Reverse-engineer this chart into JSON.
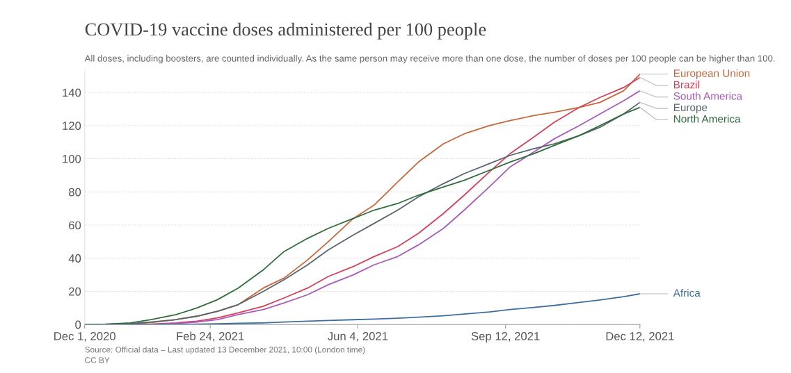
{
  "chart_data": {
    "type": "line",
    "title": "COVID-19 vaccine doses administered per 100 people",
    "subtitle": "All doses, including boosters, are counted individually. As the same person may receive more than one dose, the number of doses per 100 people can be higher than 100.",
    "x": [
      "2020-12-01",
      "2020-12-15",
      "2021-01-01",
      "2021-01-15",
      "2021-02-01",
      "2021-02-15",
      "2021-03-01",
      "2021-03-15",
      "2021-04-01",
      "2021-04-15",
      "2021-05-01",
      "2021-05-15",
      "2021-06-01",
      "2021-06-15",
      "2021-07-01",
      "2021-07-15",
      "2021-08-01",
      "2021-08-15",
      "2021-09-01",
      "2021-09-15",
      "2021-10-01",
      "2021-10-15",
      "2021-11-01",
      "2021-11-15",
      "2021-12-01",
      "2021-12-12"
    ],
    "series": [
      {
        "name": "European Union",
        "color": "#c8673a",
        "values": [
          null,
          null,
          0.3,
          1.2,
          3,
          5,
          8,
          12,
          22,
          28,
          39,
          50,
          64,
          72,
          86,
          98,
          109,
          115,
          120,
          123,
          126,
          128,
          131,
          134,
          141,
          151
        ]
      },
      {
        "name": "Brazil",
        "color": "#d6405a",
        "values": [
          null,
          null,
          0,
          0.2,
          1,
          2,
          4,
          7,
          11,
          16,
          22,
          29,
          35,
          41,
          47,
          55,
          67,
          78,
          92,
          103,
          113,
          122,
          131,
          137,
          143,
          149
        ]
      },
      {
        "name": "South America",
        "color": "#a75bbd",
        "values": [
          null,
          null,
          0,
          0.1,
          0.7,
          1.5,
          3,
          6,
          9,
          13,
          18,
          24,
          30,
          36,
          41,
          48,
          58,
          69,
          83,
          95,
          104,
          112,
          120,
          127,
          135,
          141
        ]
      },
      {
        "name": "Europe",
        "color": "#56666c",
        "values": [
          0,
          0.1,
          0.5,
          1.5,
          3,
          5,
          8,
          12,
          20,
          27,
          36,
          45,
          54,
          61,
          69,
          77,
          85,
          91,
          97,
          102,
          106,
          109,
          114,
          119,
          127,
          134
        ]
      },
      {
        "name": "North America",
        "color": "#2f6d3c",
        "values": [
          0,
          0.2,
          1,
          3,
          6,
          10,
          15,
          22,
          33,
          44,
          52,
          58,
          64,
          69,
          73,
          78,
          83,
          87,
          93,
          98,
          103,
          108,
          114,
          120,
          127,
          131
        ]
      },
      {
        "name": "Africa",
        "color": "#3d6f9e",
        "values": [
          0,
          0,
          0,
          0,
          0.1,
          0.2,
          0.4,
          0.7,
          1,
          1.5,
          2,
          2.4,
          2.9,
          3.3,
          3.8,
          4.4,
          5.3,
          6.3,
          7.6,
          9,
          10.3,
          11.5,
          13.3,
          14.8,
          16.8,
          18.5
        ]
      }
    ],
    "xlim": [
      "2020-12-01",
      "2021-12-12"
    ],
    "xticks": [
      {
        "value": "2020-12-01",
        "label": "Dec 1, 2020"
      },
      {
        "value": "2021-02-24",
        "label": "Feb 24, 2021"
      },
      {
        "value": "2021-06-04",
        "label": "Jun 4, 2021"
      },
      {
        "value": "2021-09-12",
        "label": "Sep 12, 2021"
      },
      {
        "value": "2021-12-12",
        "label": "Dec 12, 2021"
      }
    ],
    "ylim": [
      0,
      153
    ],
    "yticks": [
      0,
      20,
      40,
      60,
      80,
      100,
      120,
      140
    ],
    "grid": "y",
    "line_style": "solid",
    "annotations": [
      "Source: Official data – Last updated 13 December 2021, 10:00 (London time)",
      "CC BY"
    ]
  }
}
